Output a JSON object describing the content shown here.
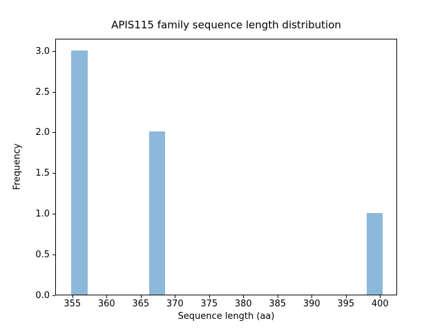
{
  "chart_data": {
    "type": "bar",
    "subtype": "histogram",
    "title": "APIS115 family sequence length distribution",
    "xlabel": "Sequence length (aa)",
    "ylabel": "Frequency",
    "xlim": [
      352.5,
      402.5
    ],
    "ylim": [
      0,
      3.15
    ],
    "x_ticks": [
      355,
      360,
      365,
      370,
      375,
      380,
      385,
      390,
      395,
      400
    ],
    "y_ticks": [
      0.0,
      0.5,
      1.0,
      1.5,
      2.0,
      2.5,
      3.0
    ],
    "grid": false,
    "legend": null,
    "bar_color": "#8cb8da",
    "bars": [
      {
        "x_start": 354.7,
        "x_end": 357.1,
        "frequency": 3
      },
      {
        "x_start": 366.1,
        "x_end": 368.5,
        "frequency": 2
      },
      {
        "x_start": 398.0,
        "x_end": 400.3,
        "frequency": 1
      }
    ]
  }
}
